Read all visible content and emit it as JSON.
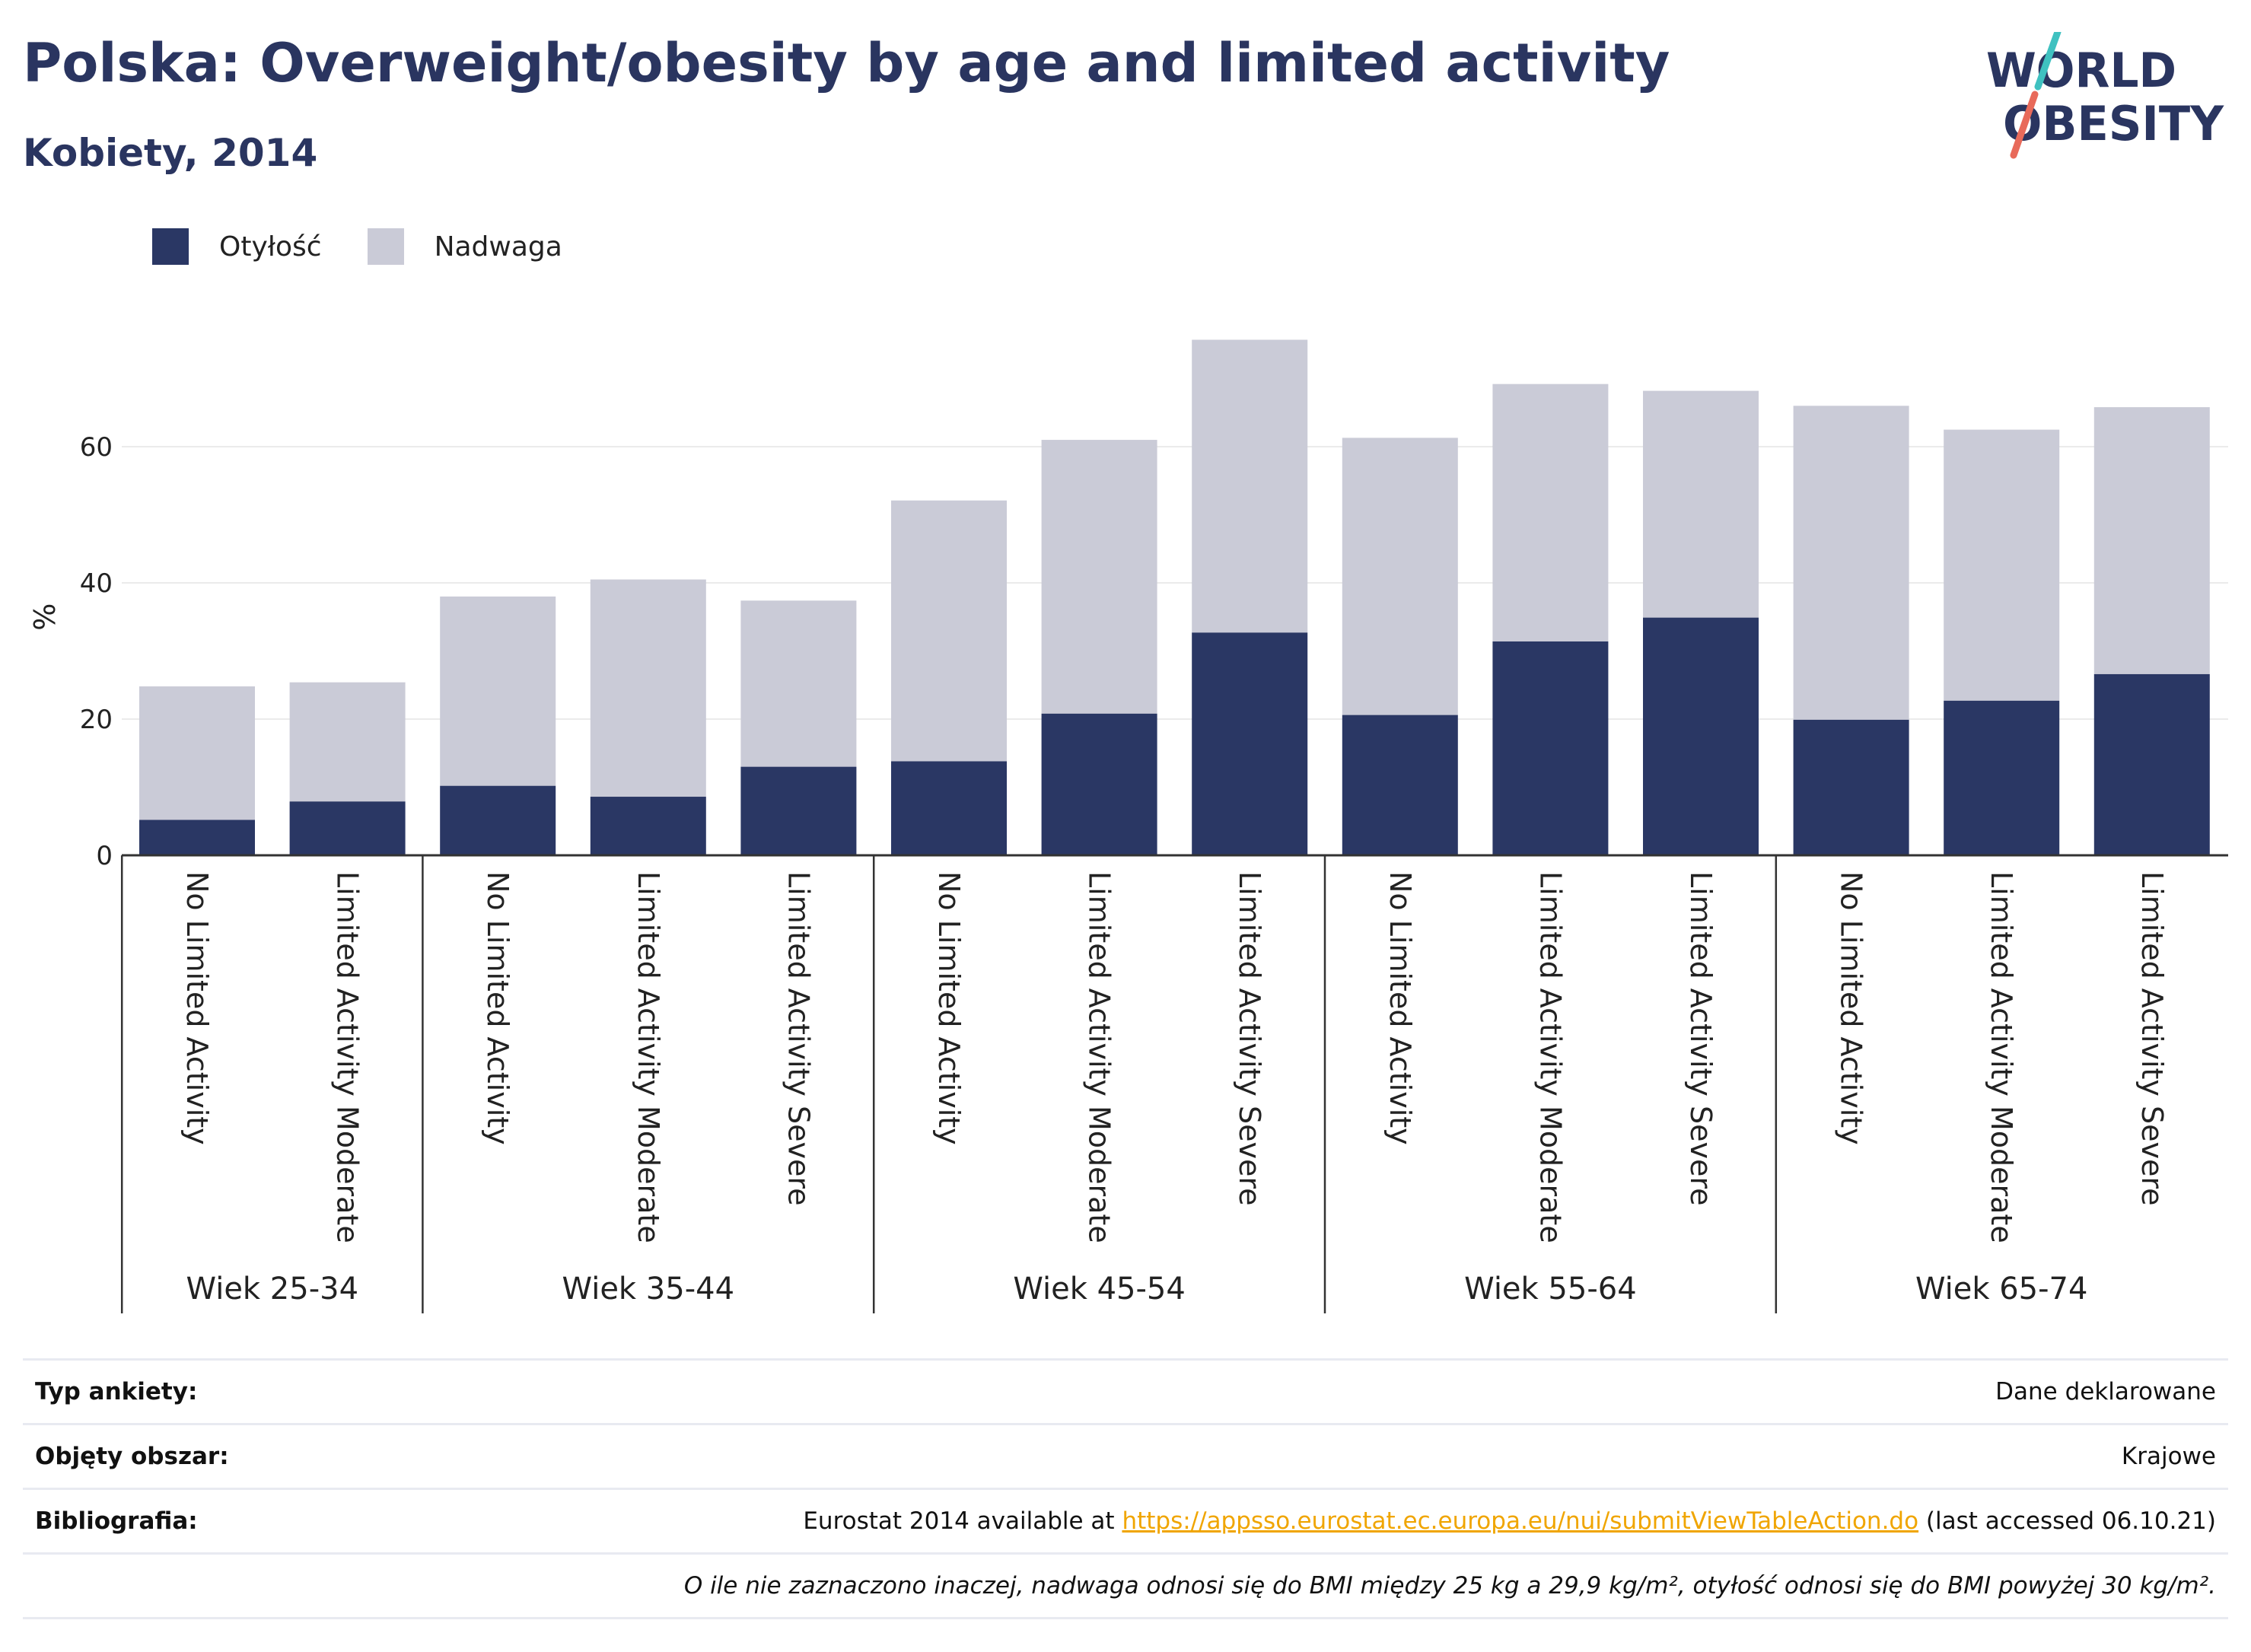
{
  "header": {
    "title": "Polska: Overweight/obesity by age and limited activity",
    "subtitle": "Kobiety, 2014",
    "logo_line1": "WORLD",
    "logo_line2": "OBESITY"
  },
  "colors": {
    "obesity": "#2a3764",
    "overweight": "#cacbd7",
    "title": "#2a3560",
    "link": "#f0a500"
  },
  "chart_data": {
    "type": "bar",
    "stacked": true,
    "ylabel": "%",
    "ylim": [
      0,
      80
    ],
    "yticks": [
      0,
      20,
      40,
      60
    ],
    "grid": true,
    "legend_position": "top-left",
    "groups": [
      {
        "label": "Wiek 25-34",
        "categories": [
          "No Limited Activity",
          "Limited Activity Moderate"
        ]
      },
      {
        "label": "Wiek 35-44",
        "categories": [
          "No Limited Activity",
          "Limited Activity Moderate",
          "Limited Activity Severe"
        ]
      },
      {
        "label": "Wiek 45-54",
        "categories": [
          "No Limited Activity",
          "Limited Activity Moderate",
          "Limited Activity Severe"
        ]
      },
      {
        "label": "Wiek 55-64",
        "categories": [
          "No Limited Activity",
          "Limited Activity Moderate",
          "Limited Activity Severe"
        ]
      },
      {
        "label": "Wiek 65-74",
        "categories": [
          "No Limited Activity",
          "Limited Activity Moderate",
          "Limited Activity Severe"
        ]
      }
    ],
    "series": [
      {
        "name": "Otyłość",
        "values": [
          5.2,
          7.9,
          10.2,
          8.6,
          13.0,
          13.8,
          20.8,
          32.7,
          20.6,
          31.4,
          34.9,
          19.9,
          22.7,
          26.6
        ]
      },
      {
        "name": "Nadwaga",
        "values": [
          19.6,
          17.5,
          27.8,
          31.9,
          24.4,
          38.3,
          40.2,
          43.0,
          40.7,
          37.8,
          33.3,
          46.1,
          39.8,
          39.2
        ]
      }
    ]
  },
  "info": {
    "survey_label": "Typ ankiety:",
    "survey_value": "Dane deklarowane",
    "area_label": "Objęty obszar:",
    "area_value": "Krajowe",
    "biblio_label": "Bibliografia:",
    "biblio_prefix": "Eurostat 2014 available at ",
    "biblio_link": "https://appsso.eurostat.ec.europa.eu/nui/submitViewTableAction.do",
    "biblio_suffix": " (last accessed 06.10.21)",
    "note": "O ile nie zaznaczono inaczej, nadwaga odnosi się do BMI między 25 kg a 29,9 kg/m², otyłość odnosi się do BMI powyżej 30 kg/m²."
  }
}
